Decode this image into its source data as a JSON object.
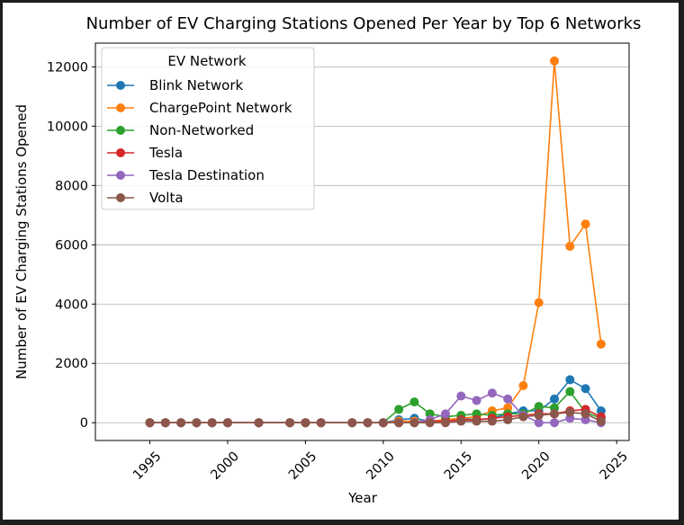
{
  "chart_data": {
    "type": "line",
    "title": "Number of EV Charging Stations Opened Per Year by Top 6 Networks",
    "xlabel": "Year",
    "ylabel": "Number of EV Charging Stations Opened",
    "xlim": [
      1991.5,
      2025.8
    ],
    "ylim": [
      -600,
      12800
    ],
    "xticks": [
      1995,
      2000,
      2005,
      2010,
      2015,
      2020,
      2025
    ],
    "yticks": [
      0,
      2000,
      4000,
      6000,
      8000,
      10000,
      12000
    ],
    "grid": "horizontal",
    "legend": {
      "title": "EV Network",
      "placement": "top-left"
    },
    "series": [
      {
        "name": "Blink Network",
        "color": "#1f77b4",
        "points": [
          [
            1995,
            0
          ],
          [
            1996,
            0
          ],
          [
            1997,
            0
          ],
          [
            1998,
            0
          ],
          [
            1999,
            0
          ],
          [
            2000,
            0
          ],
          [
            2002,
            0
          ],
          [
            2004,
            0
          ],
          [
            2005,
            0
          ],
          [
            2006,
            0
          ],
          [
            2008,
            0
          ],
          [
            2009,
            0
          ],
          [
            2010,
            0
          ],
          [
            2011,
            100
          ],
          [
            2012,
            150
          ],
          [
            2013,
            50
          ],
          [
            2014,
            100
          ],
          [
            2015,
            150
          ],
          [
            2016,
            100
          ],
          [
            2017,
            150
          ],
          [
            2018,
            300
          ],
          [
            2019,
            400
          ],
          [
            2020,
            400
          ],
          [
            2021,
            800
          ],
          [
            2022,
            1450
          ],
          [
            2023,
            1150
          ],
          [
            2024,
            400
          ]
        ]
      },
      {
        "name": "ChargePoint Network",
        "color": "#ff7f0e",
        "points": [
          [
            1995,
            0
          ],
          [
            1996,
            0
          ],
          [
            1997,
            0
          ],
          [
            1998,
            0
          ],
          [
            1999,
            0
          ],
          [
            2000,
            0
          ],
          [
            2002,
            0
          ],
          [
            2004,
            0
          ],
          [
            2005,
            0
          ],
          [
            2006,
            0
          ],
          [
            2008,
            0
          ],
          [
            2009,
            0
          ],
          [
            2010,
            0
          ],
          [
            2011,
            50
          ],
          [
            2012,
            50
          ],
          [
            2013,
            50
          ],
          [
            2014,
            100
          ],
          [
            2015,
            150
          ],
          [
            2016,
            200
          ],
          [
            2017,
            400
          ],
          [
            2018,
            500
          ],
          [
            2019,
            1250
          ],
          [
            2020,
            4050
          ],
          [
            2021,
            12200
          ],
          [
            2022,
            5950
          ],
          [
            2023,
            6700
          ],
          [
            2024,
            2650
          ]
        ]
      },
      {
        "name": "Non-Networked",
        "color": "#2ca02c",
        "points": [
          [
            1995,
            0
          ],
          [
            1996,
            0
          ],
          [
            1997,
            0
          ],
          [
            1998,
            0
          ],
          [
            1999,
            0
          ],
          [
            2000,
            0
          ],
          [
            2002,
            0
          ],
          [
            2004,
            0
          ],
          [
            2005,
            0
          ],
          [
            2006,
            0
          ],
          [
            2008,
            0
          ],
          [
            2009,
            0
          ],
          [
            2010,
            0
          ],
          [
            2011,
            450
          ],
          [
            2012,
            700
          ],
          [
            2013,
            300
          ],
          [
            2014,
            200
          ],
          [
            2015,
            250
          ],
          [
            2016,
            300
          ],
          [
            2017,
            250
          ],
          [
            2018,
            300
          ],
          [
            2019,
            300
          ],
          [
            2020,
            550
          ],
          [
            2021,
            500
          ],
          [
            2022,
            1050
          ],
          [
            2023,
            350
          ],
          [
            2024,
            150
          ]
        ]
      },
      {
        "name": "Tesla",
        "color": "#d62728",
        "points": [
          [
            1995,
            0
          ],
          [
            1996,
            0
          ],
          [
            1997,
            0
          ],
          [
            1998,
            0
          ],
          [
            1999,
            0
          ],
          [
            2000,
            0
          ],
          [
            2002,
            0
          ],
          [
            2004,
            0
          ],
          [
            2005,
            0
          ],
          [
            2006,
            0
          ],
          [
            2008,
            0
          ],
          [
            2009,
            0
          ],
          [
            2010,
            0
          ],
          [
            2011,
            0
          ],
          [
            2012,
            0
          ],
          [
            2013,
            50
          ],
          [
            2014,
            50
          ],
          [
            2015,
            100
          ],
          [
            2016,
            100
          ],
          [
            2017,
            150
          ],
          [
            2018,
            200
          ],
          [
            2019,
            250
          ],
          [
            2020,
            300
          ],
          [
            2021,
            300
          ],
          [
            2022,
            400
          ],
          [
            2023,
            450
          ],
          [
            2024,
            200
          ]
        ]
      },
      {
        "name": "Tesla Destination",
        "color": "#9467bd",
        "points": [
          [
            1995,
            0
          ],
          [
            1996,
            0
          ],
          [
            1997,
            0
          ],
          [
            1998,
            0
          ],
          [
            1999,
            0
          ],
          [
            2000,
            0
          ],
          [
            2002,
            0
          ],
          [
            2004,
            0
          ],
          [
            2005,
            0
          ],
          [
            2006,
            0
          ],
          [
            2008,
            0
          ],
          [
            2009,
            0
          ],
          [
            2010,
            0
          ],
          [
            2011,
            0
          ],
          [
            2012,
            0
          ],
          [
            2013,
            100
          ],
          [
            2014,
            300
          ],
          [
            2015,
            900
          ],
          [
            2016,
            750
          ],
          [
            2017,
            1000
          ],
          [
            2018,
            800
          ],
          [
            2019,
            250
          ],
          [
            2020,
            0
          ],
          [
            2021,
            0
          ],
          [
            2022,
            150
          ],
          [
            2023,
            100
          ],
          [
            2024,
            0
          ]
        ]
      },
      {
        "name": "Volta",
        "color": "#8c564b",
        "points": [
          [
            1995,
            0
          ],
          [
            1996,
            0
          ],
          [
            1997,
            0
          ],
          [
            1998,
            0
          ],
          [
            1999,
            0
          ],
          [
            2000,
            0
          ],
          [
            2002,
            0
          ],
          [
            2004,
            0
          ],
          [
            2005,
            0
          ],
          [
            2006,
            0
          ],
          [
            2008,
            0
          ],
          [
            2009,
            0
          ],
          [
            2010,
            0
          ],
          [
            2011,
            0
          ],
          [
            2012,
            0
          ],
          [
            2013,
            0
          ],
          [
            2014,
            0
          ],
          [
            2015,
            50
          ],
          [
            2016,
            50
          ],
          [
            2017,
            50
          ],
          [
            2018,
            100
          ],
          [
            2019,
            200
          ],
          [
            2020,
            250
          ],
          [
            2021,
            300
          ],
          [
            2022,
            350
          ],
          [
            2023,
            300
          ],
          [
            2024,
            50
          ]
        ]
      }
    ]
  }
}
